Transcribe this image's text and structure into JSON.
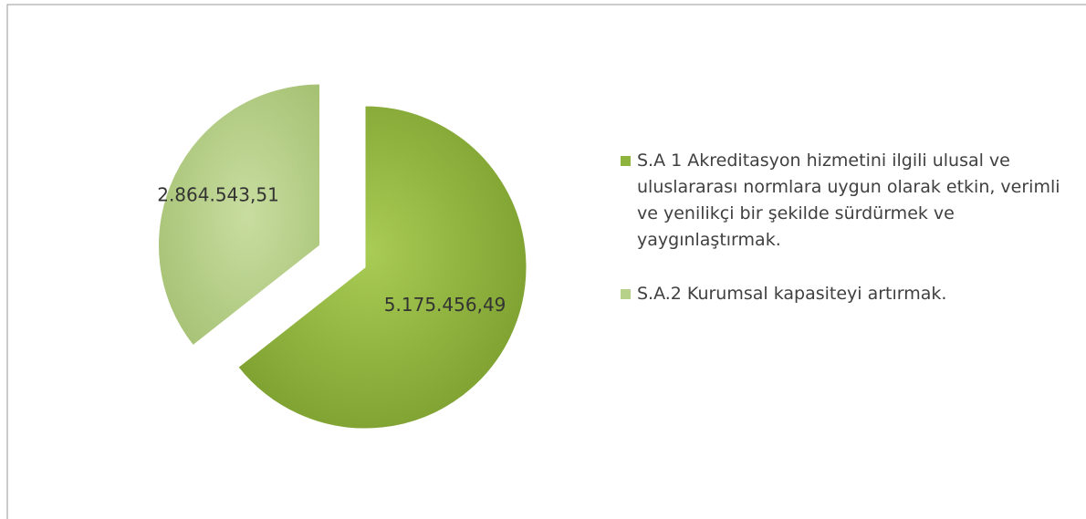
{
  "chart_data": {
    "type": "pie",
    "categories": [
      "S.A 1 Akreditasyon hizmetini ilgili ulusal ve uluslararası normlara uygun olarak etkin, verimli ve yenilikçi bir şekilde sürdürmek ve yaygınlaştırmak.",
      "S.A.2 Kurumsal kapasiteyi artırmak."
    ],
    "values": [
      5175456.49,
      2864543.51
    ],
    "value_labels": [
      "5.175.456,49",
      "2.864.543,51"
    ],
    "colors": [
      "#8fb43e",
      "#b7d08a"
    ],
    "legend": "right"
  }
}
